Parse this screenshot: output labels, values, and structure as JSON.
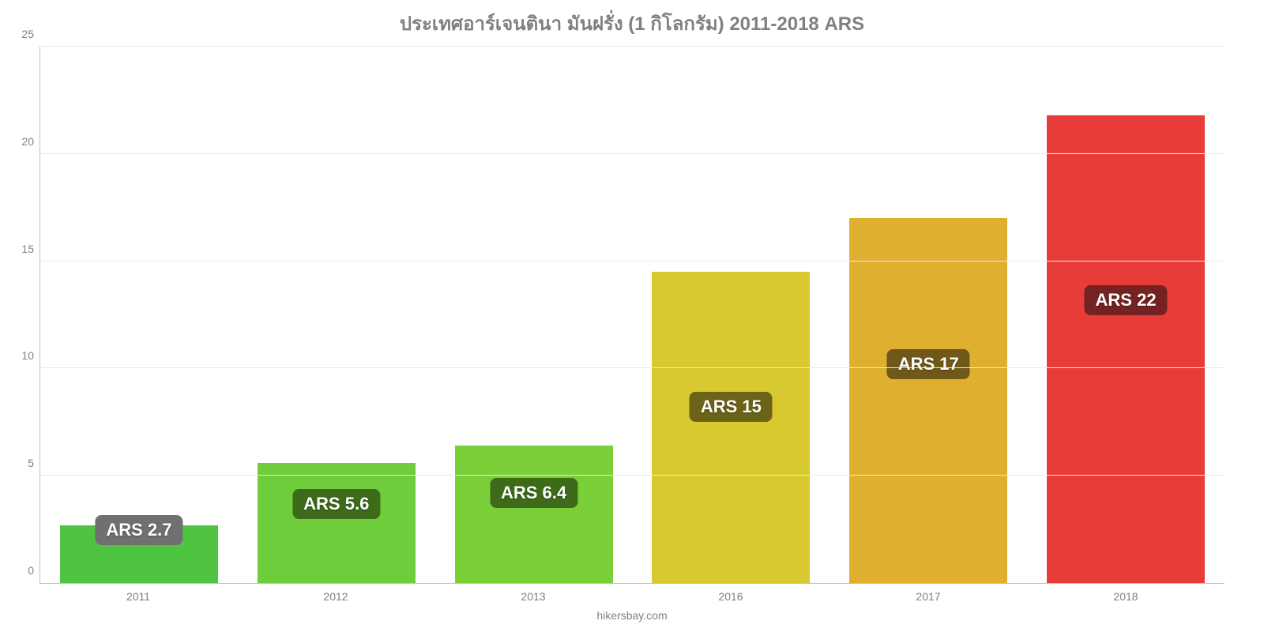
{
  "chart": {
    "type": "bar",
    "title": "ประเทศอาร์เจนตินา มันฝรั่ง (1 กิโลกรัม) 2011-2018 ARS",
    "title_color": "#808080",
    "title_fontsize": 24,
    "background_color": "#ffffff",
    "grid_color": "#e8e8e8",
    "axis_color": "#c0c0c0",
    "tick_label_color": "#808080",
    "tick_fontsize": 14,
    "ylim": [
      0,
      25
    ],
    "ytick_step": 5,
    "yticks": [
      {
        "value": 0,
        "label": "0"
      },
      {
        "value": 5,
        "label": "5"
      },
      {
        "value": 10,
        "label": "10"
      },
      {
        "value": 15,
        "label": "15"
      },
      {
        "value": 20,
        "label": "20"
      },
      {
        "value": 25,
        "label": "25"
      }
    ],
    "bars": [
      {
        "category": "2011",
        "value": 2.7,
        "label": "ARS 2.7",
        "color": "#4fc441",
        "label_bg": "#707070",
        "label_bottom_pct": 7
      },
      {
        "category": "2012",
        "value": 5.6,
        "label": "ARS 5.6",
        "color": "#6fcc3a",
        "label_bg": "#3d6b1a",
        "label_bottom_pct": 12
      },
      {
        "category": "2013",
        "value": 6.4,
        "label": "ARS 6.4",
        "color": "#7bcf38",
        "label_bg": "#3d6b1a",
        "label_bottom_pct": 14
      },
      {
        "category": "2016",
        "value": 14.5,
        "label": "ARS 15",
        "color": "#d8c930",
        "label_bg": "#6b6318",
        "label_bottom_pct": 30
      },
      {
        "category": "2017",
        "value": 17,
        "label": "ARS 17",
        "color": "#dfb02f",
        "label_bg": "#705818",
        "label_bottom_pct": 38
      },
      {
        "category": "2018",
        "value": 21.8,
        "label": "ARS 22",
        "color": "#e83c39",
        "label_bg": "#752322",
        "label_bottom_pct": 50
      }
    ],
    "bar_label_fontsize": 22,
    "bar_label_text_color": "#ffffff",
    "footer": "hikersbay.com",
    "footer_color": "#808080",
    "footer_fontsize": 14
  }
}
